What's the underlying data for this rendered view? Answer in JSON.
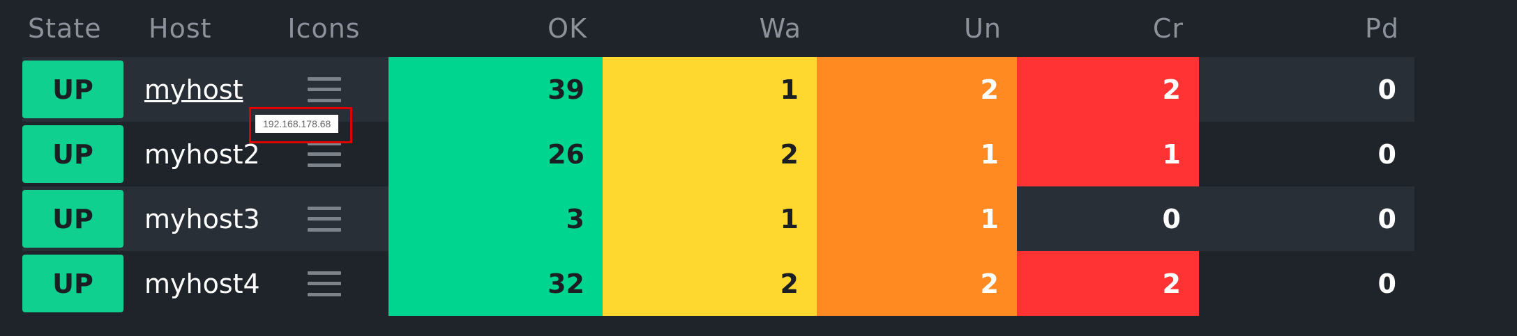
{
  "columns": {
    "state": "State",
    "host": "Host",
    "icons": "Icons",
    "ok": "OK",
    "wa": "Wa",
    "un": "Un",
    "cr": "Cr",
    "pd": "Pd"
  },
  "rows": [
    {
      "state": "UP",
      "host": "myhost",
      "ok": "39",
      "wa": "1",
      "un": "2",
      "cr": "2",
      "pd": "0"
    },
    {
      "state": "UP",
      "host": "myhost2",
      "ok": "26",
      "wa": "2",
      "un": "1",
      "cr": "1",
      "pd": "0"
    },
    {
      "state": "UP",
      "host": "myhost3",
      "ok": "3",
      "wa": "1",
      "un": "1",
      "cr": "0",
      "pd": "0"
    },
    {
      "state": "UP",
      "host": "myhost4",
      "ok": "32",
      "wa": "2",
      "un": "2",
      "cr": "2",
      "pd": "0"
    }
  ],
  "tooltip": {
    "text": "192.168.178.68"
  },
  "icons": {
    "row_menu": "menu-icon"
  },
  "colors": {
    "up": "#0fd08e",
    "ok": "#00d58f",
    "warn": "#fed82f",
    "unknown": "#ff8a21",
    "critical": "#ff3333",
    "background": "#1f242b",
    "row_alt": "#292f37"
  }
}
